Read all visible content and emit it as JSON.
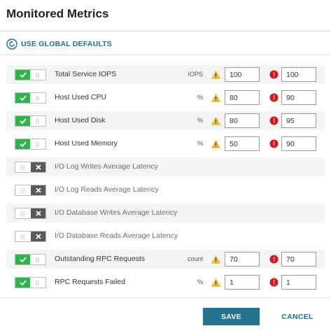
{
  "title": "Monitored Metrics",
  "defaults_link": {
    "label": "USE GLOBAL DEFAULTS",
    "icon": "refresh-icon",
    "color": "#1f6f8e"
  },
  "colors": {
    "toggle_on": "#30b34a",
    "toggle_off": "#5a5a5a",
    "warning": "#f2c12e",
    "critical": "#d0191e",
    "save": "#23738f"
  },
  "metrics": [
    {
      "name": "Total Service IOPS",
      "enabled": true,
      "unit": "IOPS",
      "warning": "100",
      "critical": "100"
    },
    {
      "name": "Host Used CPU",
      "enabled": true,
      "unit": "%",
      "warning": "80",
      "critical": "90"
    },
    {
      "name": "Host Used Disk",
      "enabled": true,
      "unit": "%",
      "warning": "80",
      "critical": "95"
    },
    {
      "name": "Host Used Memory",
      "enabled": true,
      "unit": "%",
      "warning": "50",
      "critical": "90"
    },
    {
      "name": "I/O Log Writes Average Latency",
      "enabled": false
    },
    {
      "name": "I/O Log Reads Average Latency",
      "enabled": false
    },
    {
      "name": "I/O Database Writes Average Latency",
      "enabled": false
    },
    {
      "name": "I/O Database Reads Average Latency",
      "enabled": false
    },
    {
      "name": "Outstanding RPC Requests",
      "enabled": true,
      "unit": "count",
      "warning": "70",
      "critical": "70"
    },
    {
      "name": "RPC Requests Failed",
      "enabled": true,
      "unit": "%",
      "warning": "1",
      "critical": "1"
    }
  ],
  "footer": {
    "save_label": "SAVE",
    "cancel_label": "CANCEL"
  }
}
